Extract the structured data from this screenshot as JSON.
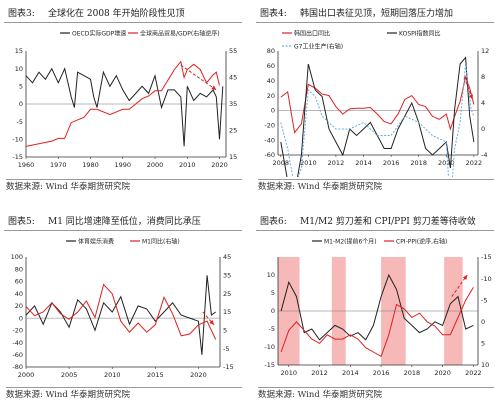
{
  "figures": [
    {
      "number": "图表3:",
      "title": "全球化在 2008 年开始阶段性见顶",
      "source": "数据来源: Wind 华泰期货研究院"
    },
    {
      "number": "图表4:",
      "title": "韩国出口表征见顶，短期回落压力增加",
      "source": "数据来源: Wind 华泰期货研究院"
    },
    {
      "number": "图表5:",
      "title": "M1 同比增速降至低位，消费同比承压",
      "source": "数据来源: Wind 华泰期货研究院"
    },
    {
      "number": "图表6:",
      "title": "M1/M2 剪刀差和 CPI/PPI 剪刀差等待收敛",
      "source": "数据来源: Wind 华泰期货研究院"
    }
  ],
  "colors": {
    "black": "#222222",
    "red": "#e02020",
    "pink": "#f4a0a0",
    "blue": "#6aaee0",
    "purple": "#7a3a7a"
  },
  "chart_data": [
    {
      "type": "line",
      "series": [
        {
          "name": "OECD实际GDP增速",
          "axis": "left",
          "color": "#222222",
          "x": [
            1960,
            1962,
            1964,
            1966,
            1968,
            1970,
            1972,
            1974,
            1975,
            1976,
            1978,
            1980,
            1981,
            1982,
            1984,
            1986,
            1988,
            1990,
            1992,
            1994,
            1996,
            1998,
            2000,
            2002,
            2004,
            2006,
            2008,
            2009,
            2010,
            2012,
            2014,
            2016,
            2018,
            2019,
            2020,
            2021
          ],
          "y": [
            8,
            6,
            9,
            7,
            10,
            6,
            10,
            2,
            -1,
            9,
            8,
            7,
            2,
            -1,
            9,
            5,
            8,
            4,
            1,
            3,
            5,
            3,
            8,
            -1,
            4,
            4,
            2,
            -12,
            5,
            1,
            3,
            2,
            4,
            2,
            -10,
            5
          ]
        },
        {
          "name": "全球商品贸易/GDP(右轴逆序)",
          "axis": "right",
          "color": "#e02020",
          "x": [
            1960,
            1964,
            1968,
            1970,
            1972,
            1974,
            1976,
            1978,
            1980,
            1982,
            1984,
            1986,
            1988,
            1990,
            1992,
            1994,
            1996,
            1998,
            2000,
            2002,
            2004,
            2006,
            2008,
            2009,
            2010,
            2012,
            2014,
            2016,
            2018,
            2019,
            2020
          ],
          "y": [
            19,
            20,
            21,
            22,
            22,
            28,
            29,
            30,
            33,
            33,
            32,
            31,
            32,
            33,
            33,
            35,
            37,
            38,
            40,
            40,
            44,
            48,
            51,
            45,
            48,
            50,
            48,
            43,
            46,
            47,
            42
          ]
        },
        {
          "name": "",
          "color": "#e02020",
          "style": "dashed-arrow",
          "axis": "left",
          "x": [
            2008,
            2019
          ],
          "y": [
            11,
            4
          ]
        }
      ],
      "xticks": [
        1960,
        1970,
        1980,
        1990,
        2000,
        2010,
        2020
      ],
      "yticks_left": [
        15,
        10,
        5,
        0,
        -5,
        -10,
        -15
      ],
      "yticks_right": [
        55,
        45,
        35,
        25,
        15
      ],
      "ylim_left": [
        -15,
        15
      ],
      "ylim_right": [
        15,
        55
      ],
      "xlim": [
        1960,
        2022
      ]
    },
    {
      "type": "line",
      "series": [
        {
          "name": "韩国出口同比",
          "axis": "left",
          "color": "#e02020",
          "x": [
            2008.0,
            2008.5,
            2009.0,
            2009.5,
            2010.0,
            2010.5,
            2011.0,
            2011.5,
            2012.0,
            2012.5,
            2013.0,
            2013.5,
            2014.0,
            2014.5,
            2015.0,
            2015.5,
            2016.0,
            2016.5,
            2017.0,
            2017.5,
            2018.0,
            2018.5,
            2019.0,
            2019.5,
            2020.0,
            2020.3,
            2020.6,
            2021.0,
            2021.4,
            2021.7,
            2022.0
          ],
          "y": [
            18,
            25,
            -30,
            -18,
            35,
            30,
            22,
            20,
            5,
            -5,
            2,
            3,
            3,
            4,
            -5,
            -15,
            -18,
            -5,
            15,
            20,
            8,
            5,
            -8,
            -12,
            -5,
            -25,
            -8,
            12,
            45,
            30,
            8
          ]
        },
        {
          "name": "KOSPI指数同比",
          "axis": "right",
          "color": "#222222",
          "x": [
            2008.0,
            2008.5,
            2009.0,
            2009.5,
            2010.0,
            2010.5,
            2011.0,
            2011.5,
            2012.0,
            2012.5,
            2013.0,
            2013.5,
            2014.0,
            2014.5,
            2015.0,
            2015.5,
            2016.0,
            2016.5,
            2017.0,
            2017.5,
            2018.0,
            2018.5,
            2019.0,
            2019.5,
            2020.0,
            2020.3,
            2020.6,
            2021.0,
            2021.4,
            2021.7,
            2022.0
          ],
          "y": [
            -2,
            -8,
            -10,
            -4,
            10,
            6,
            5,
            0,
            -2,
            -4,
            0,
            -1,
            0,
            1,
            -1,
            -3,
            -3,
            0,
            2,
            4,
            1,
            -3,
            -4,
            -3,
            -2,
            -6,
            3,
            10,
            11,
            2,
            -2
          ]
        },
        {
          "name": "G7工业生产(右轴)",
          "axis": "right",
          "color": "#6aaee0",
          "x": [
            2008.0,
            2008.5,
            2009.0,
            2009.5,
            2010.0,
            2010.5,
            2011.0,
            2012.0,
            2013.0,
            2014.0,
            2015.0,
            2016.0,
            2017.0,
            2018.0,
            2019.0,
            2020.0,
            2020.3,
            2020.6,
            2021.0,
            2021.4,
            2021.8,
            2022.0
          ],
          "y": [
            1,
            -3,
            -9,
            -6,
            6,
            5,
            2,
            0,
            0,
            1,
            -1,
            -1,
            2,
            1,
            -1,
            -2,
            -12,
            -3,
            1,
            10,
            3,
            2
          ]
        },
        {
          "name": "",
          "color": "#e02020",
          "style": "dashed-arrow",
          "axis": "left",
          "x": [
            2021.3,
            2021.9
          ],
          "y": [
            45,
            15
          ]
        }
      ],
      "xticks": [
        2008,
        2010,
        2012,
        2014,
        2016,
        2018,
        2020,
        2022
      ],
      "yticks_left": [
        80,
        60,
        40,
        20,
        0,
        -20,
        -40,
        -60
      ],
      "yticks_right": [
        12,
        8,
        4,
        0,
        -4
      ],
      "ylim_left": [
        -60,
        80
      ],
      "ylim_right": [
        -6,
        12
      ],
      "xlim": [
        2007.8,
        2022.3
      ]
    },
    {
      "type": "line",
      "series": [
        {
          "name": "体育娱乐消费",
          "axis": "left",
          "color": "#222222",
          "x": [
            2000,
            2001,
            2002,
            2003,
            2004,
            2005,
            2006,
            2007,
            2008,
            2009,
            2010,
            2011,
            2012,
            2013,
            2014,
            2015,
            2016,
            2017,
            2018,
            2019,
            2020,
            2020.4,
            2021,
            2021.5,
            2022
          ],
          "y": [
            5,
            20,
            -10,
            25,
            10,
            -15,
            30,
            15,
            -20,
            25,
            10,
            35,
            -10,
            20,
            15,
            -5,
            10,
            25,
            5,
            0,
            -5,
            -60,
            70,
            5,
            10
          ]
        },
        {
          "name": "M1同比(右轴)",
          "axis": "right",
          "color": "#e02020",
          "x": [
            2000,
            2001,
            2002,
            2003,
            2004,
            2005,
            2006,
            2007,
            2008,
            2009,
            2010,
            2011,
            2012,
            2013,
            2014,
            2015,
            2016,
            2017,
            2018,
            2019,
            2020,
            2021,
            2022
          ],
          "y": [
            18,
            13,
            15,
            20,
            14,
            11,
            15,
            21,
            12,
            30,
            25,
            10,
            4,
            9,
            4,
            8,
            23,
            14,
            2,
            3,
            8,
            10,
            0
          ]
        },
        {
          "name": "",
          "color": "#e02020",
          "style": "dashed-arrow",
          "axis": "right",
          "x": [
            2020.5,
            2021.8
          ],
          "y": [
            15,
            8
          ]
        }
      ],
      "xticks": [
        2000,
        2005,
        2010,
        2015,
        2020
      ],
      "yticks_left": [
        100,
        80,
        60,
        40,
        20,
        0,
        -20,
        -40,
        -60,
        -80
      ],
      "yticks_right": [
        45,
        35,
        25,
        15,
        5,
        -5,
        -15
      ],
      "ylim_left": [
        -80,
        100
      ],
      "ylim_right": [
        -15,
        45
      ],
      "xlim": [
        2000,
        2022.5
      ]
    },
    {
      "type": "line",
      "series": [
        {
          "name": "M1-M2(提前6个月)",
          "axis": "left",
          "color": "#222222",
          "x": [
            2009.5,
            2010.0,
            2010.5,
            2011.0,
            2011.5,
            2012.0,
            2012.5,
            2013.0,
            2013.5,
            2014.0,
            2014.5,
            2015.0,
            2015.5,
            2016.0,
            2016.5,
            2017.0,
            2017.5,
            2018.0,
            2018.5,
            2019.0,
            2019.5,
            2020.0,
            2020.5,
            2021.0,
            2021.5,
            2022.0
          ],
          "y": [
            0,
            8,
            4,
            -6,
            -5,
            -8,
            -6,
            -4,
            -5,
            -7,
            -6,
            -8,
            -4,
            4,
            10,
            6,
            -2,
            -4,
            -6,
            -5,
            -3,
            -4,
            2,
            4,
            -5,
            -4
          ]
        },
        {
          "name": "CPI-PPI(逆序,右轴)",
          "axis": "right",
          "color": "#e02020",
          "x": [
            2009.5,
            2010.0,
            2010.5,
            2011.0,
            2011.5,
            2012.0,
            2012.5,
            2013.0,
            2013.5,
            2014.0,
            2014.5,
            2015.0,
            2015.5,
            2016.0,
            2016.5,
            2017.0,
            2017.5,
            2018.0,
            2018.5,
            2019.0,
            2019.5,
            2020.0,
            2020.5,
            2021.0,
            2021.5,
            2022.0
          ],
          "y": [
            7,
            2,
            0,
            2,
            4,
            5,
            3,
            4,
            4,
            3,
            4,
            6,
            7,
            8,
            3,
            -4,
            -3,
            -1,
            -2,
            0,
            1,
            3,
            3,
            -1,
            -5,
            -8
          ]
        },
        {
          "name": "",
          "color": "#e02020",
          "style": "dashed-arrow",
          "axis": "left",
          "x": [
            2020.6,
            2021.6
          ],
          "y": [
            4,
            10
          ]
        }
      ],
      "highlight_periods": [
        [
          2009.3,
          2010.7
        ],
        [
          2012.8,
          2013.7
        ],
        [
          2016.0,
          2017.6
        ],
        [
          2020.1,
          2021.3
        ]
      ],
      "xticks": [
        2010,
        2012,
        2014,
        2016,
        2018,
        2020,
        2022
      ],
      "yticks_left": [
        10,
        5,
        0,
        -5,
        -10,
        -15
      ],
      "yticks_right": [
        -15,
        -10,
        -5,
        0,
        5,
        10
      ],
      "ylim_left": [
        -15,
        15
      ],
      "ylim_right": [
        -15,
        10
      ],
      "xlim": [
        2009.3,
        2022.3
      ]
    }
  ]
}
